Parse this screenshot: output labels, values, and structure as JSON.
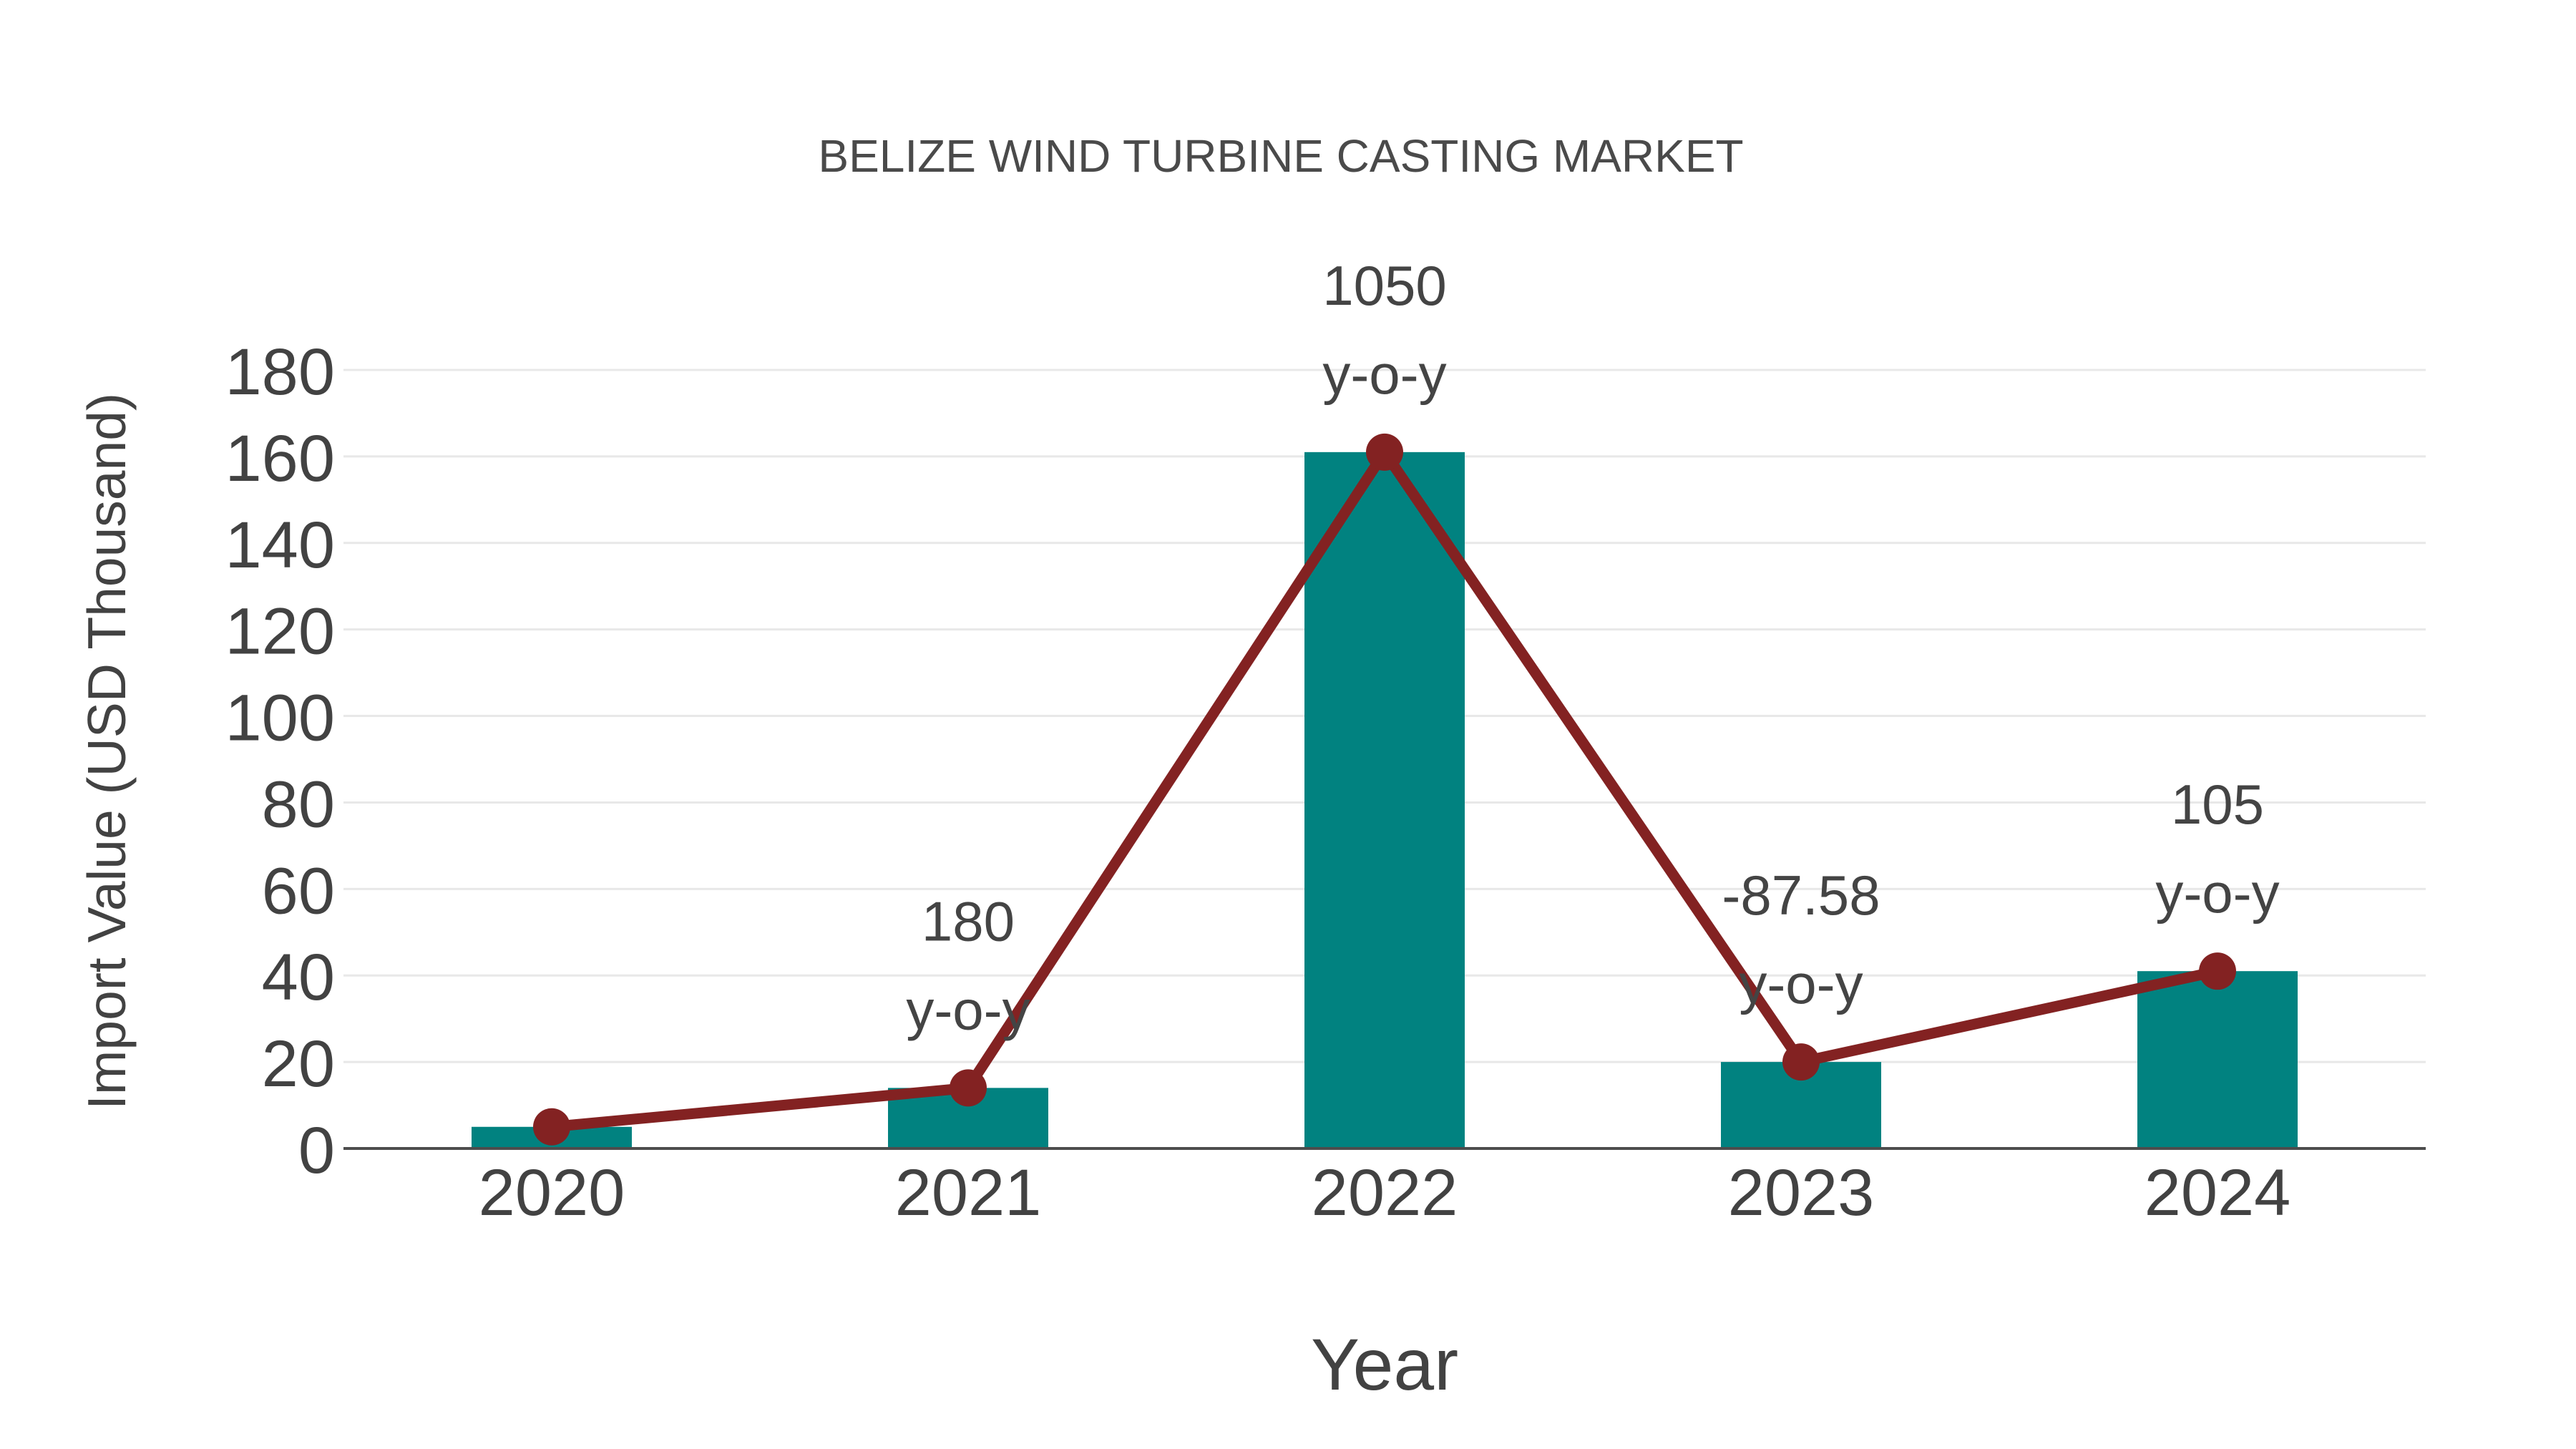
{
  "chart_data": {
    "type": "bar",
    "title": "BELIZE WIND TURBINE CASTING MARKET",
    "xlabel": "Year",
    "ylabel": "Import Value (USD Thousand)",
    "categories": [
      "2020",
      "2021",
      "2022",
      "2023",
      "2024"
    ],
    "series": [
      {
        "name": "import-value-bars",
        "type": "bar",
        "values": [
          5,
          14,
          161,
          20,
          41
        ]
      },
      {
        "name": "import-value-trend",
        "type": "line",
        "values": [
          5,
          14,
          161,
          20,
          41
        ]
      }
    ],
    "annotations": [
      {
        "category": "2021",
        "lines": [
          "180",
          "y-o-y"
        ]
      },
      {
        "category": "2022",
        "lines": [
          "1050",
          "y-o-y"
        ]
      },
      {
        "category": "2023",
        "lines": [
          "-87.58",
          "y-o-y"
        ]
      },
      {
        "category": "2024",
        "lines": [
          "105",
          "y-o-y"
        ]
      }
    ],
    "ylim": [
      0,
      180
    ],
    "ytick_step": 20,
    "grid": true,
    "legend_position": "none",
    "colors": {
      "bar": "#018280",
      "line": "#832222",
      "marker": "#832222",
      "grid": "#e8e8e8",
      "axis_line": "#4d4d4d",
      "text": "#424242",
      "title": "#4a4a4a",
      "background": "#ffffff"
    }
  }
}
